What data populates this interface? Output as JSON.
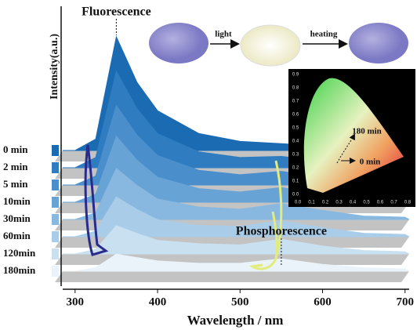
{
  "chart_data": {
    "type": "waterfall",
    "x_label": "Wavelength / nm",
    "y_label": "Intensity(a.u.)",
    "x": [
      300,
      325,
      350,
      375,
      400,
      450,
      500,
      550,
      600,
      650,
      700
    ],
    "xlim": [
      285,
      705
    ],
    "xticks": [
      300,
      400,
      500,
      600,
      700
    ],
    "ylim": [
      0,
      100
    ],
    "series": [
      {
        "name": "0 min",
        "color": "#1b6bb3",
        "values": [
          0,
          10,
          100,
          60,
          35,
          15,
          8,
          6,
          4,
          3,
          2
        ]
      },
      {
        "name": "2 min",
        "color": "#2f7cc0",
        "values": [
          0,
          9,
          85,
          52,
          30,
          14,
          9,
          10,
          6,
          3,
          2
        ]
      },
      {
        "name": "5 min",
        "color": "#4a8fcb",
        "values": [
          0,
          8,
          70,
          44,
          26,
          13,
          9,
          12,
          7,
          3,
          2
        ]
      },
      {
        "name": "10min",
        "color": "#68a3d5",
        "values": [
          0,
          7,
          58,
          37,
          22,
          12,
          9,
          13,
          7,
          3,
          2
        ]
      },
      {
        "name": "30min",
        "color": "#88b8df",
        "values": [
          0,
          6,
          45,
          30,
          18,
          11,
          9,
          14,
          8,
          3,
          2
        ]
      },
      {
        "name": "60min",
        "color": "#a9cde8",
        "values": [
          0,
          5,
          35,
          24,
          15,
          10,
          9,
          14,
          8,
          3,
          2
        ]
      },
      {
        "name": "120min",
        "color": "#c9e0f0",
        "values": [
          0,
          4,
          25,
          18,
          12,
          9,
          8,
          13,
          7,
          3,
          2
        ]
      },
      {
        "name": "180min",
        "color": "#eaf3f9",
        "values": [
          0,
          3,
          15,
          12,
          9,
          7,
          7,
          11,
          6,
          3,
          2
        ]
      }
    ],
    "annotations": [
      {
        "text": "Fluorescence",
        "x": 350
      },
      {
        "text": "Phosphorescence",
        "x": 550
      }
    ]
  },
  "scheme": {
    "step1": "light",
    "step2": "heating"
  },
  "inset": {
    "xticks": [
      "0.0",
      "0.1",
      "0.2",
      "0.3",
      "0.4",
      "0.5",
      "0.6",
      "0.7",
      "0.8"
    ],
    "yticks": [
      "0.0",
      "0.1",
      "0.2",
      "0.3",
      "0.4",
      "0.5",
      "0.6",
      "0.7",
      "0.8",
      "0.9"
    ],
    "label_end": "180 min",
    "label_start": "0 min"
  }
}
